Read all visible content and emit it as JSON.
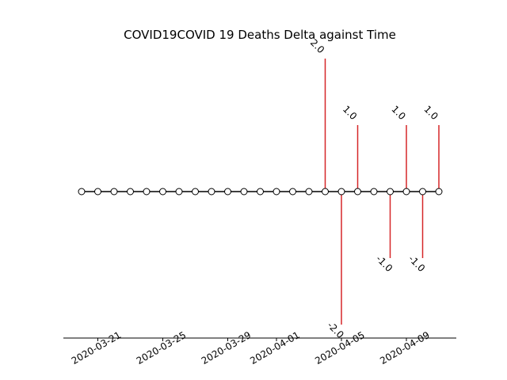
{
  "chart_data": {
    "type": "line",
    "title": "COVID19COVID 19 Deaths Delta against Time",
    "xlabel": "",
    "ylabel": "",
    "x": [
      "2020-03-20",
      "2020-03-21",
      "2020-03-22",
      "2020-03-23",
      "2020-03-24",
      "2020-03-25",
      "2020-03-26",
      "2020-03-27",
      "2020-03-28",
      "2020-03-29",
      "2020-03-30",
      "2020-03-31",
      "2020-04-01",
      "2020-04-02",
      "2020-04-03",
      "2020-04-04",
      "2020-04-05",
      "2020-04-06",
      "2020-04-07",
      "2020-04-08",
      "2020-04-09",
      "2020-04-10",
      "2020-04-11"
    ],
    "series": [
      {
        "values": [
          0,
          0,
          0,
          0,
          0,
          0,
          0,
          0,
          0,
          0,
          0,
          0,
          0,
          0,
          0,
          0,
          0,
          0,
          0,
          0,
          0,
          0,
          0
        ]
      }
    ],
    "deltas": [
      {
        "x": "2020-04-04",
        "value": 2.0,
        "label": "2.0"
      },
      {
        "x": "2020-04-05",
        "value": -2.0,
        "label": "-2.0"
      },
      {
        "x": "2020-04-06",
        "value": 1.0,
        "label": "1.0"
      },
      {
        "x": "2020-04-08",
        "value": -1.0,
        "label": "-1.0"
      },
      {
        "x": "2020-04-09",
        "value": 1.0,
        "label": "1.0"
      },
      {
        "x": "2020-04-10",
        "value": -1.0,
        "label": "-1.0"
      },
      {
        "x": "2020-04-11",
        "value": 1.0,
        "label": "1.0"
      }
    ],
    "xticks": [
      "2020-03-21",
      "2020-03-25",
      "2020-03-29",
      "2020-04-01",
      "2020-04-05",
      "2020-04-09"
    ],
    "ylim": [
      -2.2,
      2.2
    ],
    "grid": false,
    "colors": {
      "stem": "#d62728",
      "line": "#000000",
      "marker_face": "#ffffff",
      "marker_edge": "#000000"
    }
  }
}
